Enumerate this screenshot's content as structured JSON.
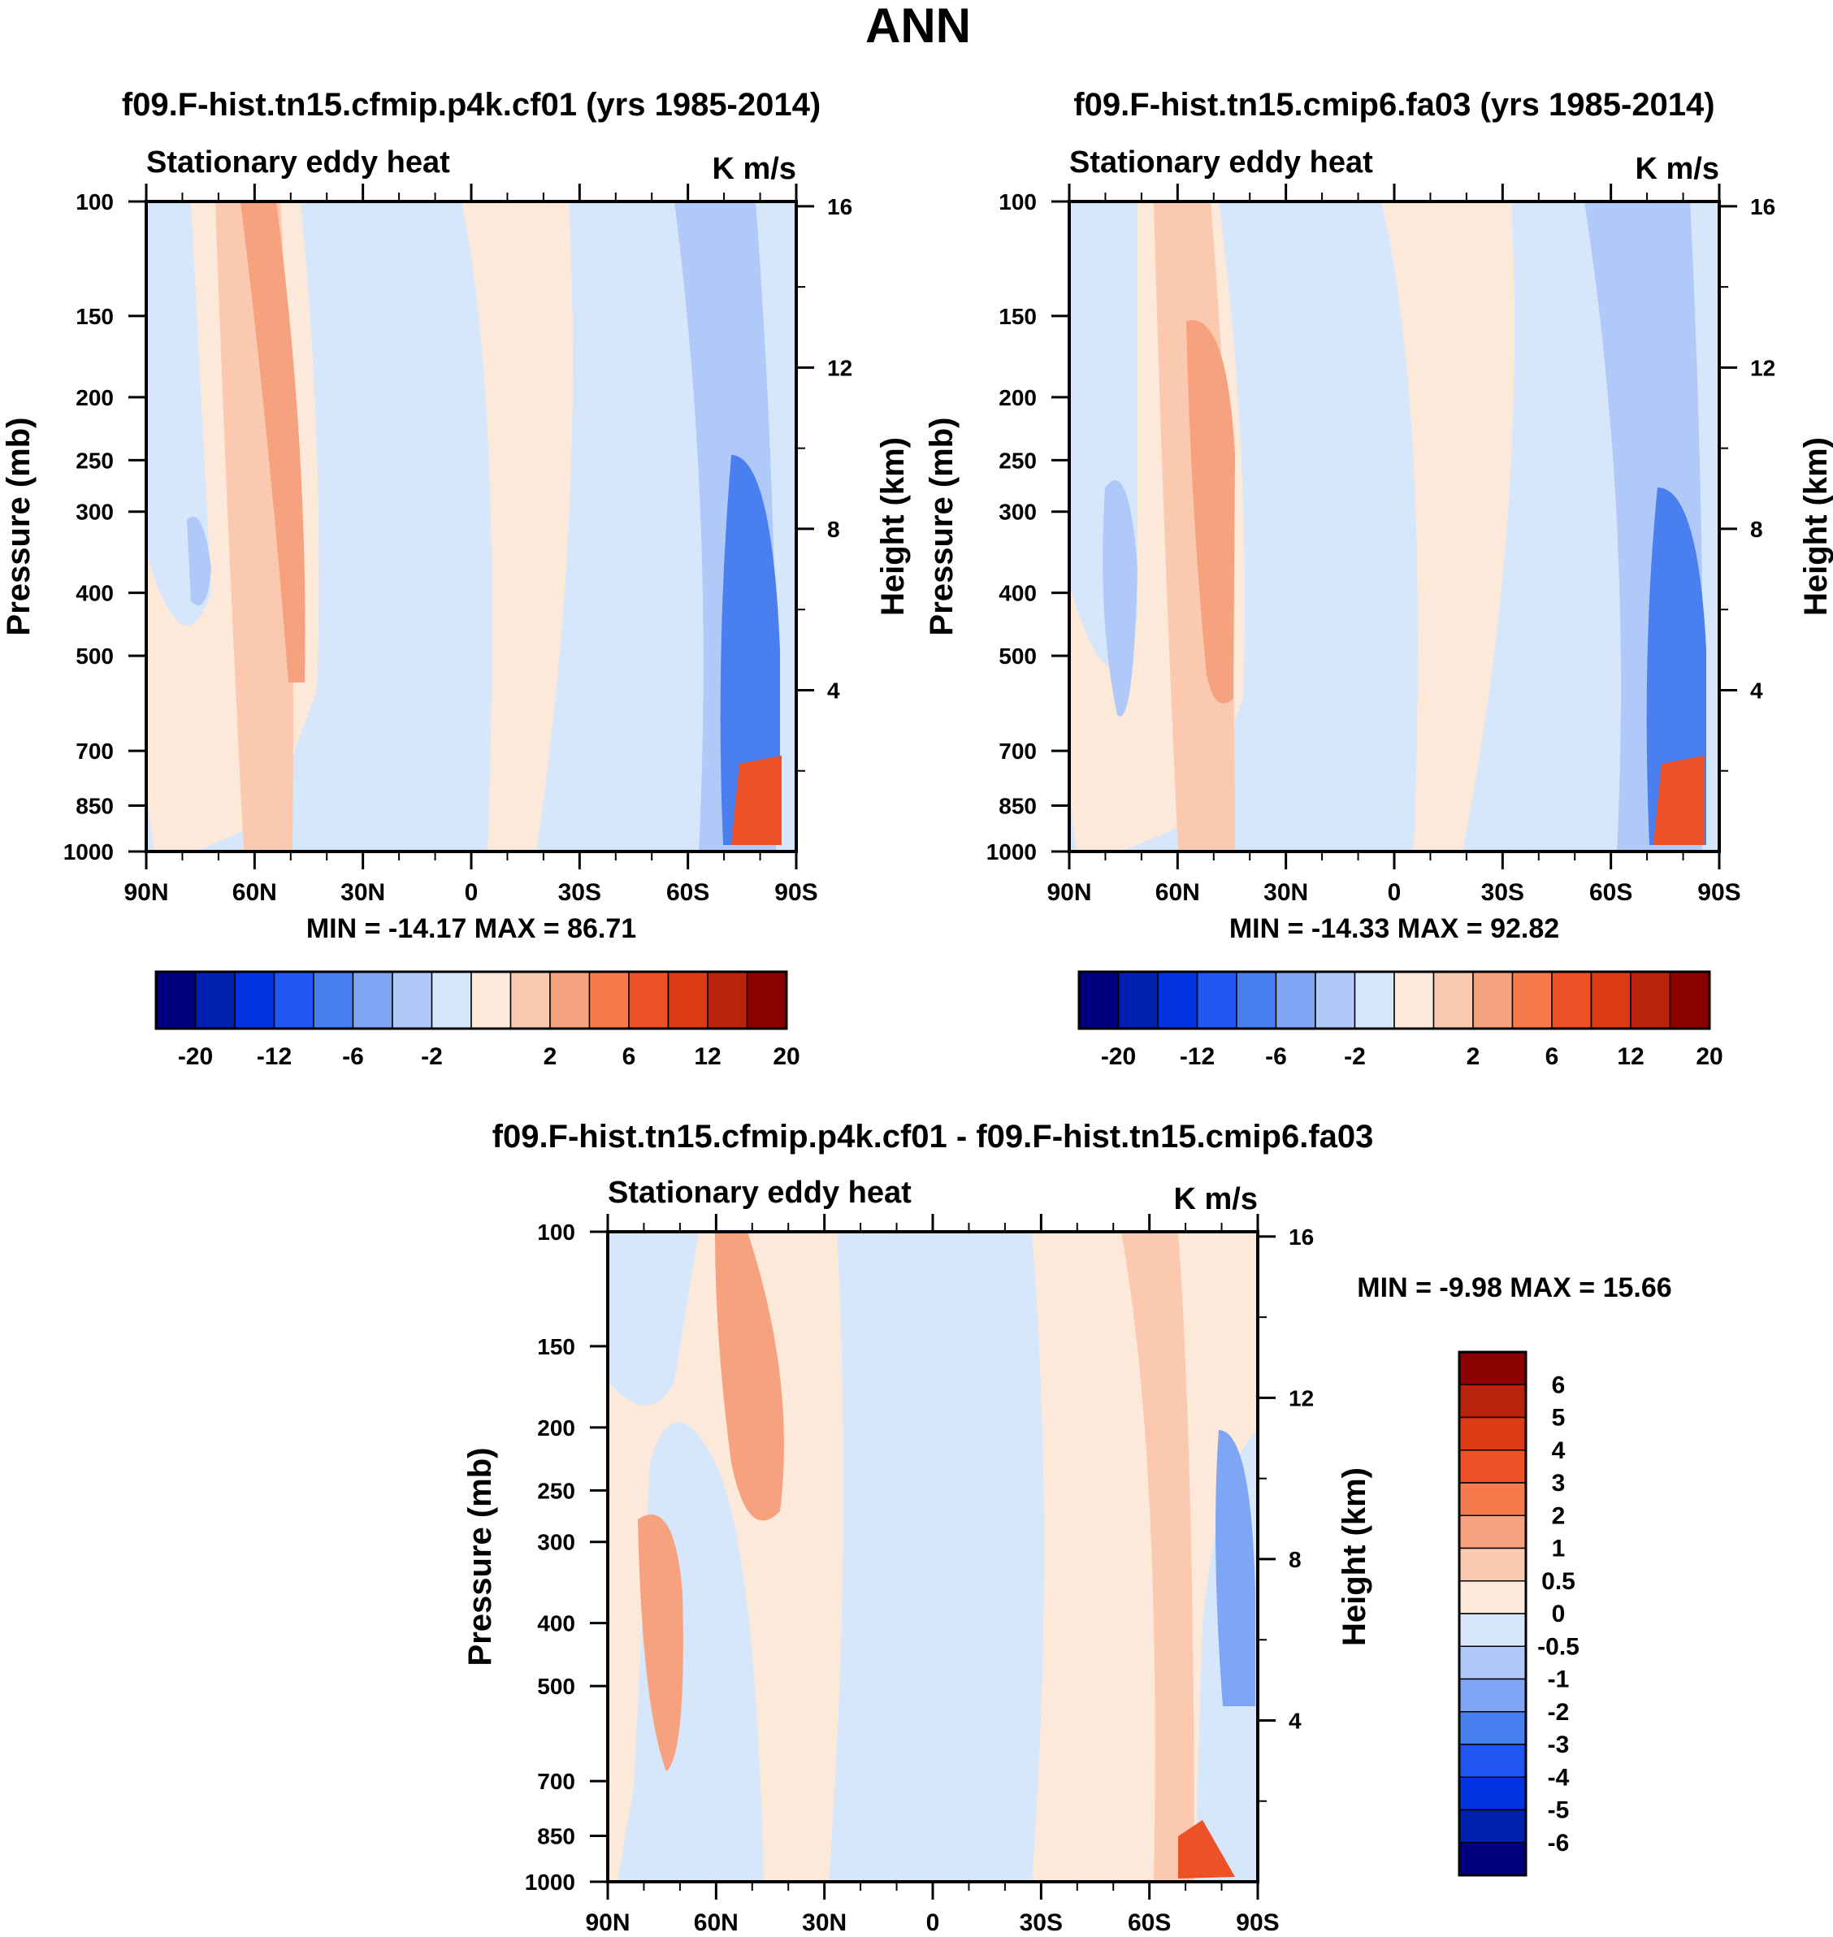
{
  "figure": {
    "title": "ANN",
    "colors": {
      "frame": "#000000",
      "background": "#ffffff",
      "fill_light_blue": "#d6e7fb",
      "fill_light_red": "#fde9d9"
    }
  },
  "chart_data": [
    {
      "id": "panel1",
      "type": "heatmap",
      "title": "f09.F-hist.tn15.cfmip.p4k.cf01 (yrs 1985-2014)",
      "variable": "Stationary eddy heat",
      "units": "K m/s",
      "xlabel": "",
      "ylabel": "Pressure (mb)",
      "ylabel_right": "Height (km)",
      "x_ticks": [
        "90N",
        "60N",
        "30N",
        "0",
        "30S",
        "60S",
        "90S"
      ],
      "x_range": [
        90,
        -90
      ],
      "y_ticks": [
        "100",
        "150",
        "200",
        "250",
        "300",
        "400",
        "500",
        "700",
        "850",
        "1000"
      ],
      "y_tick_values": [
        100,
        150,
        200,
        250,
        300,
        400,
        500,
        700,
        850,
        1000
      ],
      "y_range": [
        1000,
        100
      ],
      "height_ticks": [
        "4",
        "8",
        "12",
        "16"
      ],
      "height_tick_values": [
        4,
        8,
        12,
        16
      ],
      "stats": "MIN = -14.17  MAX =  86.71",
      "min": -14.17,
      "max": 86.71,
      "colorbar": {
        "orientation": "horizontal",
        "labels": [
          "-20",
          "-12",
          "-6",
          "-2",
          "2",
          "6",
          "12",
          "20"
        ],
        "colors": [
          "#00007f",
          "#0020b0",
          "#0033dd",
          "#2055f0",
          "#4a7ff0",
          "#7ea6f5",
          "#b0c9f8",
          "#d6e7fb",
          "#fde9d9",
          "#fbc9b0",
          "#f7a27e",
          "#f57a4c",
          "#ee5126",
          "#dd3a15",
          "#b9230c",
          "#8b0000"
        ]
      }
    },
    {
      "id": "panel2",
      "type": "heatmap",
      "title": "f09.F-hist.tn15.cmip6.fa03 (yrs 1985-2014)",
      "variable": "Stationary eddy heat",
      "units": "K m/s",
      "xlabel": "",
      "ylabel": "Pressure (mb)",
      "ylabel_right": "Height (km)",
      "x_ticks": [
        "90N",
        "60N",
        "30N",
        "0",
        "30S",
        "60S",
        "90S"
      ],
      "x_range": [
        90,
        -90
      ],
      "y_ticks": [
        "100",
        "150",
        "200",
        "250",
        "300",
        "400",
        "500",
        "700",
        "850",
        "1000"
      ],
      "y_tick_values": [
        100,
        150,
        200,
        250,
        300,
        400,
        500,
        700,
        850,
        1000
      ],
      "y_range": [
        1000,
        100
      ],
      "height_ticks": [
        "4",
        "8",
        "12",
        "16"
      ],
      "height_tick_values": [
        4,
        8,
        12,
        16
      ],
      "stats": "MIN = -14.33  MAX =  92.82",
      "min": -14.33,
      "max": 92.82,
      "colorbar": {
        "orientation": "horizontal",
        "labels": [
          "-20",
          "-12",
          "-6",
          "-2",
          "2",
          "6",
          "12",
          "20"
        ],
        "colors": [
          "#00007f",
          "#0020b0",
          "#0033dd",
          "#2055f0",
          "#4a7ff0",
          "#7ea6f5",
          "#b0c9f8",
          "#d6e7fb",
          "#fde9d9",
          "#fbc9b0",
          "#f7a27e",
          "#f57a4c",
          "#ee5126",
          "#dd3a15",
          "#b9230c",
          "#8b0000"
        ]
      }
    },
    {
      "id": "panel3",
      "type": "heatmap",
      "title": "f09.F-hist.tn15.cfmip.p4k.cf01 - f09.F-hist.tn15.cmip6.fa03",
      "variable": "Stationary eddy heat",
      "units": "K m/s",
      "xlabel": "",
      "ylabel": "Pressure (mb)",
      "ylabel_right": "Height (km)",
      "x_ticks": [
        "90N",
        "60N",
        "30N",
        "0",
        "30S",
        "60S",
        "90S"
      ],
      "x_range": [
        90,
        -90
      ],
      "y_ticks": [
        "100",
        "150",
        "200",
        "250",
        "300",
        "400",
        "500",
        "700",
        "850",
        "1000"
      ],
      "y_tick_values": [
        100,
        150,
        200,
        250,
        300,
        400,
        500,
        700,
        850,
        1000
      ],
      "y_range": [
        1000,
        100
      ],
      "height_ticks": [
        "4",
        "8",
        "12",
        "16"
      ],
      "height_tick_values": [
        4,
        8,
        12,
        16
      ],
      "stats": "MIN =  -9.98  MAX =  15.66",
      "min": -9.98,
      "max": 15.66,
      "colorbar": {
        "orientation": "vertical",
        "labels": [
          "6",
          "5",
          "4",
          "3",
          "2",
          "1",
          "0.5",
          "0",
          "-0.5",
          "-1",
          "-2",
          "-3",
          "-4",
          "-5",
          "-6"
        ],
        "colors": [
          "#8b0000",
          "#b9230c",
          "#dd3a15",
          "#ee5126",
          "#f57a4c",
          "#f7a27e",
          "#fbc9b0",
          "#fde9d9",
          "#d6e7fb",
          "#b0c9f8",
          "#7ea6f5",
          "#4a7ff0",
          "#2055f0",
          "#0033dd",
          "#0020b0",
          "#00007f"
        ]
      }
    }
  ]
}
